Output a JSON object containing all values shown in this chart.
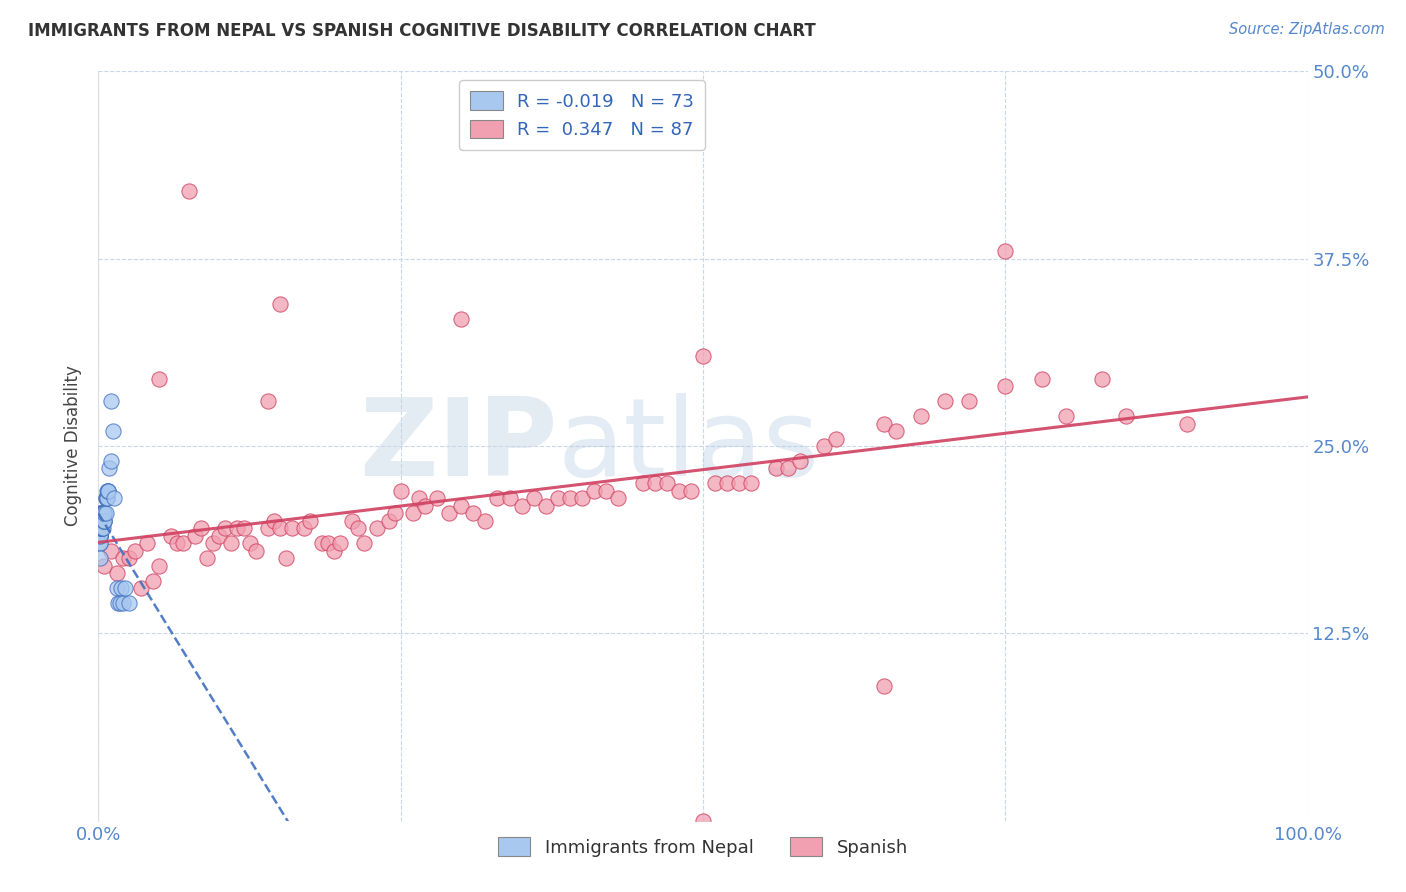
{
  "title": "IMMIGRANTS FROM NEPAL VS SPANISH COGNITIVE DISABILITY CORRELATION CHART",
  "source": "Source: ZipAtlas.com",
  "ylabel": "Cognitive Disability",
  "xlim": [
    0.0,
    1.0
  ],
  "ylim": [
    0.0,
    0.5
  ],
  "nepal_R": -0.019,
  "nepal_N": 73,
  "spanish_R": 0.347,
  "spanish_N": 87,
  "legend_label1": "Immigrants from Nepal",
  "legend_label2": "Spanish",
  "scatter_color_nepal": "#a8c8f0",
  "scatter_color_spanish": "#f0a0b0",
  "line_color_nepal": "#4070c0",
  "line_color_spanish": "#d04060",
  "watermark_zip": "ZIP",
  "watermark_atlas": "atlas",
  "background_color": "#ffffff",
  "nepal_x": [
    0.001,
    0.001,
    0.001,
    0.001,
    0.001,
    0.001,
    0.001,
    0.001,
    0.001,
    0.001,
    0.001,
    0.001,
    0.001,
    0.001,
    0.001,
    0.001,
    0.001,
    0.001,
    0.001,
    0.001,
    0.002,
    0.002,
    0.002,
    0.002,
    0.002,
    0.002,
    0.002,
    0.002,
    0.002,
    0.002,
    0.003,
    0.003,
    0.003,
    0.003,
    0.003,
    0.003,
    0.003,
    0.003,
    0.003,
    0.004,
    0.004,
    0.004,
    0.004,
    0.004,
    0.004,
    0.004,
    0.005,
    0.005,
    0.005,
    0.005,
    0.005,
    0.006,
    0.006,
    0.006,
    0.007,
    0.007,
    0.007,
    0.008,
    0.008,
    0.008,
    0.009,
    0.01,
    0.01,
    0.012,
    0.013,
    0.015,
    0.016,
    0.018,
    0.019,
    0.02,
    0.022,
    0.025,
    0.001
  ],
  "nepal_y": [
    0.195,
    0.2,
    0.205,
    0.195,
    0.19,
    0.2,
    0.195,
    0.195,
    0.195,
    0.195,
    0.19,
    0.195,
    0.2,
    0.195,
    0.185,
    0.195,
    0.19,
    0.185,
    0.195,
    0.19,
    0.205,
    0.2,
    0.195,
    0.195,
    0.2,
    0.195,
    0.2,
    0.205,
    0.2,
    0.195,
    0.2,
    0.195,
    0.2,
    0.205,
    0.195,
    0.2,
    0.195,
    0.2,
    0.195,
    0.2,
    0.205,
    0.2,
    0.205,
    0.2,
    0.195,
    0.205,
    0.2,
    0.205,
    0.2,
    0.2,
    0.205,
    0.215,
    0.205,
    0.215,
    0.215,
    0.22,
    0.215,
    0.22,
    0.22,
    0.22,
    0.235,
    0.24,
    0.28,
    0.26,
    0.215,
    0.155,
    0.145,
    0.145,
    0.155,
    0.145,
    0.155,
    0.145,
    0.175
  ],
  "spanish_x": [
    0.005,
    0.01,
    0.015,
    0.02,
    0.025,
    0.03,
    0.035,
    0.04,
    0.045,
    0.05,
    0.06,
    0.065,
    0.07,
    0.08,
    0.085,
    0.09,
    0.095,
    0.1,
    0.105,
    0.11,
    0.115,
    0.12,
    0.125,
    0.13,
    0.14,
    0.145,
    0.15,
    0.155,
    0.16,
    0.17,
    0.175,
    0.185,
    0.19,
    0.195,
    0.2,
    0.21,
    0.215,
    0.22,
    0.23,
    0.24,
    0.245,
    0.25,
    0.26,
    0.265,
    0.27,
    0.28,
    0.29,
    0.3,
    0.31,
    0.32,
    0.33,
    0.34,
    0.35,
    0.36,
    0.37,
    0.38,
    0.39,
    0.4,
    0.41,
    0.42,
    0.43,
    0.45,
    0.46,
    0.47,
    0.48,
    0.49,
    0.51,
    0.52,
    0.53,
    0.54,
    0.56,
    0.57,
    0.58,
    0.6,
    0.61,
    0.65,
    0.66,
    0.68,
    0.7,
    0.72,
    0.75,
    0.78,
    0.8,
    0.83,
    0.85,
    0.9,
    0.5
  ],
  "spanish_y": [
    0.17,
    0.18,
    0.165,
    0.175,
    0.175,
    0.18,
    0.155,
    0.185,
    0.16,
    0.17,
    0.19,
    0.185,
    0.185,
    0.19,
    0.195,
    0.175,
    0.185,
    0.19,
    0.195,
    0.185,
    0.195,
    0.195,
    0.185,
    0.18,
    0.195,
    0.2,
    0.195,
    0.175,
    0.195,
    0.195,
    0.2,
    0.185,
    0.185,
    0.18,
    0.185,
    0.2,
    0.195,
    0.185,
    0.195,
    0.2,
    0.205,
    0.22,
    0.205,
    0.215,
    0.21,
    0.215,
    0.205,
    0.21,
    0.205,
    0.2,
    0.215,
    0.215,
    0.21,
    0.215,
    0.21,
    0.215,
    0.215,
    0.215,
    0.22,
    0.22,
    0.215,
    0.225,
    0.225,
    0.225,
    0.22,
    0.22,
    0.225,
    0.225,
    0.225,
    0.225,
    0.235,
    0.235,
    0.24,
    0.25,
    0.255,
    0.265,
    0.26,
    0.27,
    0.28,
    0.28,
    0.29,
    0.295,
    0.27,
    0.295,
    0.27,
    0.265,
    0.0
  ],
  "spanish_outliers_x": [
    0.3,
    0.5,
    0.75,
    0.075,
    0.15,
    0.05,
    0.14,
    0.65
  ],
  "spanish_outliers_y": [
    0.335,
    0.31,
    0.38,
    0.42,
    0.345,
    0.295,
    0.28,
    0.09
  ]
}
